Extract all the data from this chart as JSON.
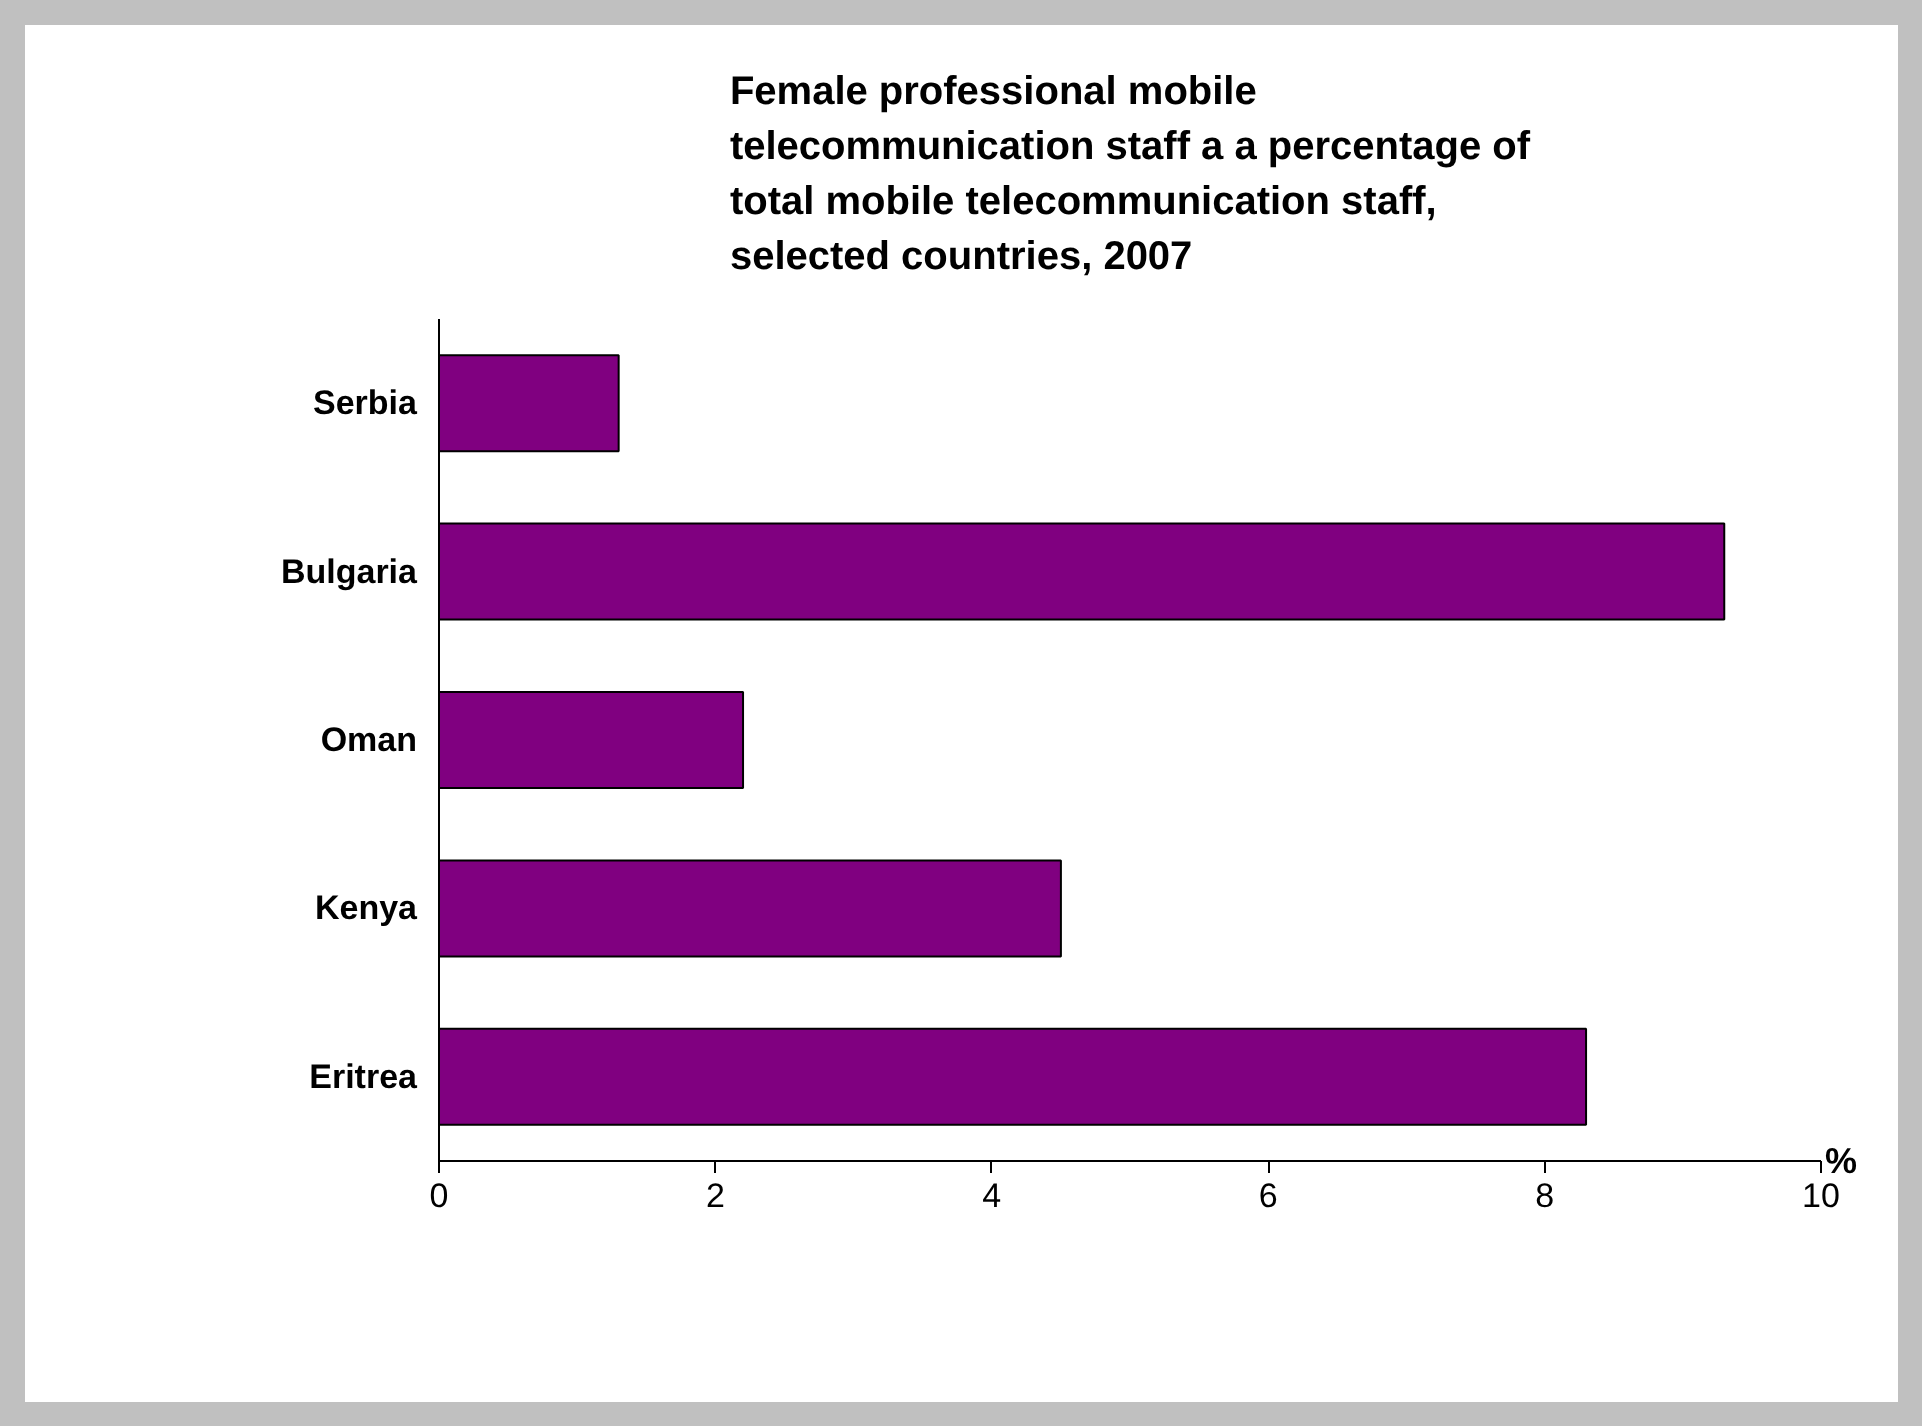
{
  "chart_data": {
    "type": "bar",
    "orientation": "horizontal",
    "title": "Female professional mobile\ntelecommunication staff a a percentage of\ntotal mobile telecommunication staff,\nselected countries, 2007",
    "categories": [
      "Serbia",
      "Bulgaria",
      "Oman",
      "Kenya",
      "Eritrea"
    ],
    "values": [
      1.3,
      9.3,
      2.2,
      4.5,
      8.3
    ],
    "color": "#800080",
    "xlabel": "%",
    "xlim": [
      0,
      10
    ],
    "xticks": [
      0,
      2,
      4,
      6,
      8,
      10
    ],
    "grid": false
  }
}
